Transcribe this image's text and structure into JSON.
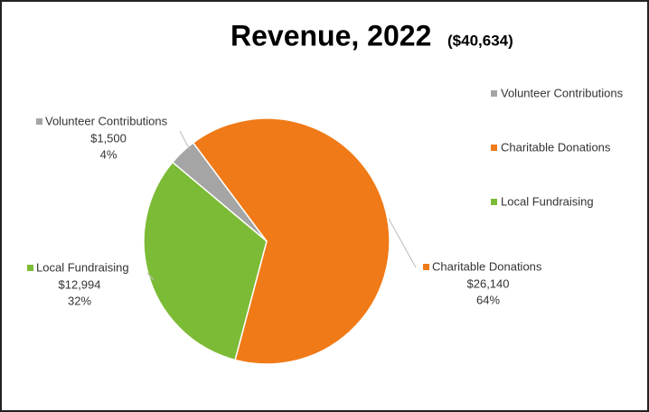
{
  "chart_data": {
    "type": "pie",
    "title": "Revenue, 2022",
    "subtitle": "($40,634)",
    "categories": [
      "Volunteer Contributions",
      "Charitable Donations",
      "Local Fundraising"
    ],
    "values": [
      1500,
      26140,
      12994
    ],
    "value_labels": [
      "$1,500",
      "$26,140",
      "$12,994"
    ],
    "percent_labels": [
      "4%",
      "64%",
      "32%"
    ],
    "colors": [
      "#a5a5a5",
      "#f07a17",
      "#7cbb35"
    ],
    "legend": "right"
  }
}
